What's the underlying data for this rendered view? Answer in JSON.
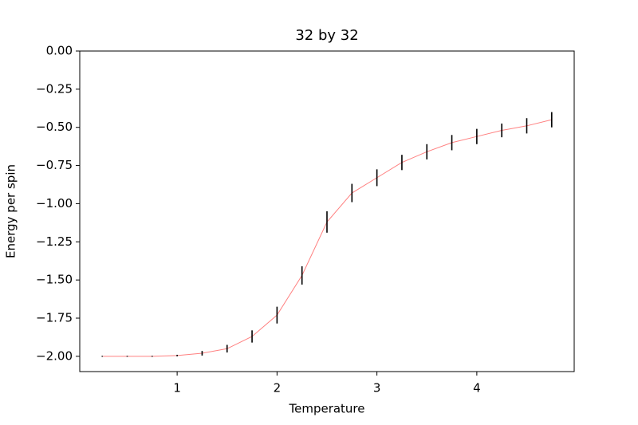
{
  "chart_data": {
    "type": "errorbar",
    "title": "32 by 32",
    "x_label": "Temperature",
    "y_label": "Energy per spin",
    "x": [
      0.25,
      0.5,
      0.75,
      1.0,
      1.25,
      1.5,
      1.75,
      2.0,
      2.25,
      2.5,
      2.75,
      3.0,
      3.25,
      3.5,
      3.75,
      4.0,
      4.25,
      4.5,
      4.75
    ],
    "values": [
      -2.0,
      -2.0,
      -2.0,
      -1.995,
      -1.98,
      -1.95,
      -1.87,
      -1.73,
      -1.47,
      -1.12,
      -0.93,
      -0.83,
      -0.73,
      -0.66,
      -0.6,
      -0.56,
      -0.52,
      -0.49,
      -0.45
    ],
    "errors": [
      0.003,
      0.003,
      0.003,
      0.005,
      0.015,
      0.025,
      0.04,
      0.055,
      0.06,
      0.07,
      0.06,
      0.055,
      0.05,
      0.05,
      0.05,
      0.05,
      0.045,
      0.05,
      0.05
    ],
    "line_color": "#ff8080",
    "error_color": "#000000",
    "xlim": [
      0.025,
      4.975
    ],
    "ylim": [
      -2.1,
      0
    ],
    "xticks": [
      1,
      2,
      3,
      4
    ],
    "yticks": [
      {
        "value": -2.0,
        "label": "−2.00"
      },
      {
        "value": -1.75,
        "label": "−1.75"
      },
      {
        "value": -1.5,
        "label": "−1.50"
      },
      {
        "value": -1.25,
        "label": "−1.25"
      },
      {
        "value": -1.0,
        "label": "−1.00"
      },
      {
        "value": -0.75,
        "label": "−0.75"
      },
      {
        "value": -0.5,
        "label": "−0.50"
      },
      {
        "value": -0.25,
        "label": "−0.25"
      },
      {
        "value": 0,
        "label": "0.00"
      }
    ]
  }
}
